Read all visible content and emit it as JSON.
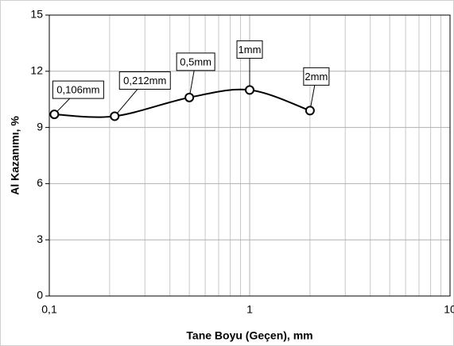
{
  "chart_data": {
    "type": "line",
    "x_label": "Tane Boyu (Geçen), mm",
    "y_label": "Al Kazanımı, %",
    "x": [
      0.106,
      0.212,
      0.5,
      1,
      2
    ],
    "values": [
      9.7,
      9.6,
      10.6,
      11.0,
      9.9
    ],
    "point_labels": [
      "0,106mm",
      "0,212mm",
      "0,5mm",
      "1mm",
      "2mm"
    ],
    "color": "#000000",
    "x_log": true,
    "smooth": true,
    "grid": true,
    "minor_grid": true,
    "xlim": [
      0.1,
      10
    ],
    "xticks": [
      {
        "value": 0.1,
        "label": "0,1"
      },
      1,
      10
    ],
    "ylim": [
      0,
      15
    ],
    "yticks": [
      0,
      3,
      6,
      9,
      12,
      15
    ]
  }
}
